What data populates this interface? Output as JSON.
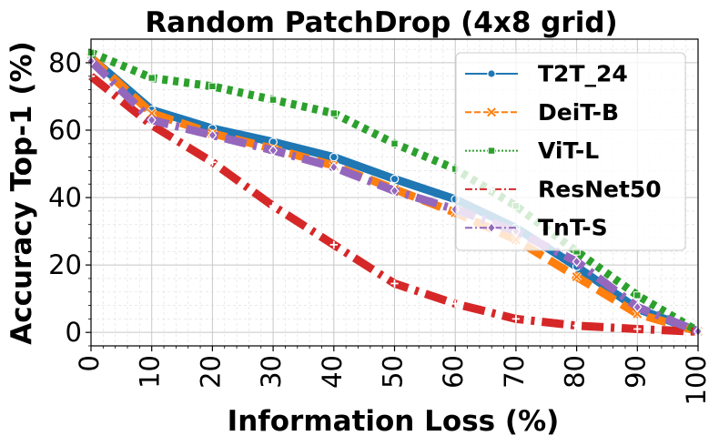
{
  "chart_data": {
    "type": "line",
    "title": "Random PatchDrop (4x8 grid)",
    "xlabel": "Information Loss (%)",
    "ylabel": "Accuracy Top-1 (%)",
    "x": [
      0,
      10,
      20,
      30,
      40,
      50,
      60,
      70,
      80,
      90,
      100
    ],
    "xlim": [
      0,
      100
    ],
    "ylim": [
      -4,
      87
    ],
    "xticks": [
      "0",
      "10",
      "20",
      "30",
      "40",
      "50",
      "60",
      "70",
      "80",
      "90",
      "100"
    ],
    "yticks": [
      "0",
      "20",
      "40",
      "60",
      "80"
    ],
    "grid": true,
    "legend_position": "top-right",
    "series": [
      {
        "name": "T2T_24",
        "color": "#1f77b4",
        "dash": "solid",
        "marker": "circle",
        "values": [
          81.5,
          66,
          60.5,
          56.5,
          52,
          45.5,
          39.5,
          31,
          19.5,
          7,
          0.3
        ]
      },
      {
        "name": "DeiT-B",
        "color": "#ff7f0e",
        "dash": "dashed",
        "marker": "x",
        "values": [
          81.5,
          65,
          59,
          54.5,
          49.5,
          42.5,
          35.5,
          27.5,
          16.5,
          5.5,
          0.3
        ]
      },
      {
        "name": "ViT-L",
        "color": "#2ca02c",
        "dash": "dotted",
        "marker": "square",
        "values": [
          83,
          75.5,
          73,
          69,
          65,
          56,
          48.5,
          37.5,
          24,
          11,
          0.3
        ]
      },
      {
        "name": "ResNet50",
        "color": "#d62728",
        "dash": "dashdot",
        "marker": "plus",
        "values": [
          76,
          61.5,
          50.5,
          37.5,
          26,
          14.5,
          8.5,
          4,
          2,
          1,
          0.2
        ]
      },
      {
        "name": "TnT-S",
        "color": "#9467bd",
        "dash": "dashdot",
        "marker": "diamond",
        "values": [
          80.5,
          63,
          58.5,
          54,
          49,
          42,
          36.5,
          30,
          21,
          7.5,
          0.3
        ]
      }
    ]
  }
}
